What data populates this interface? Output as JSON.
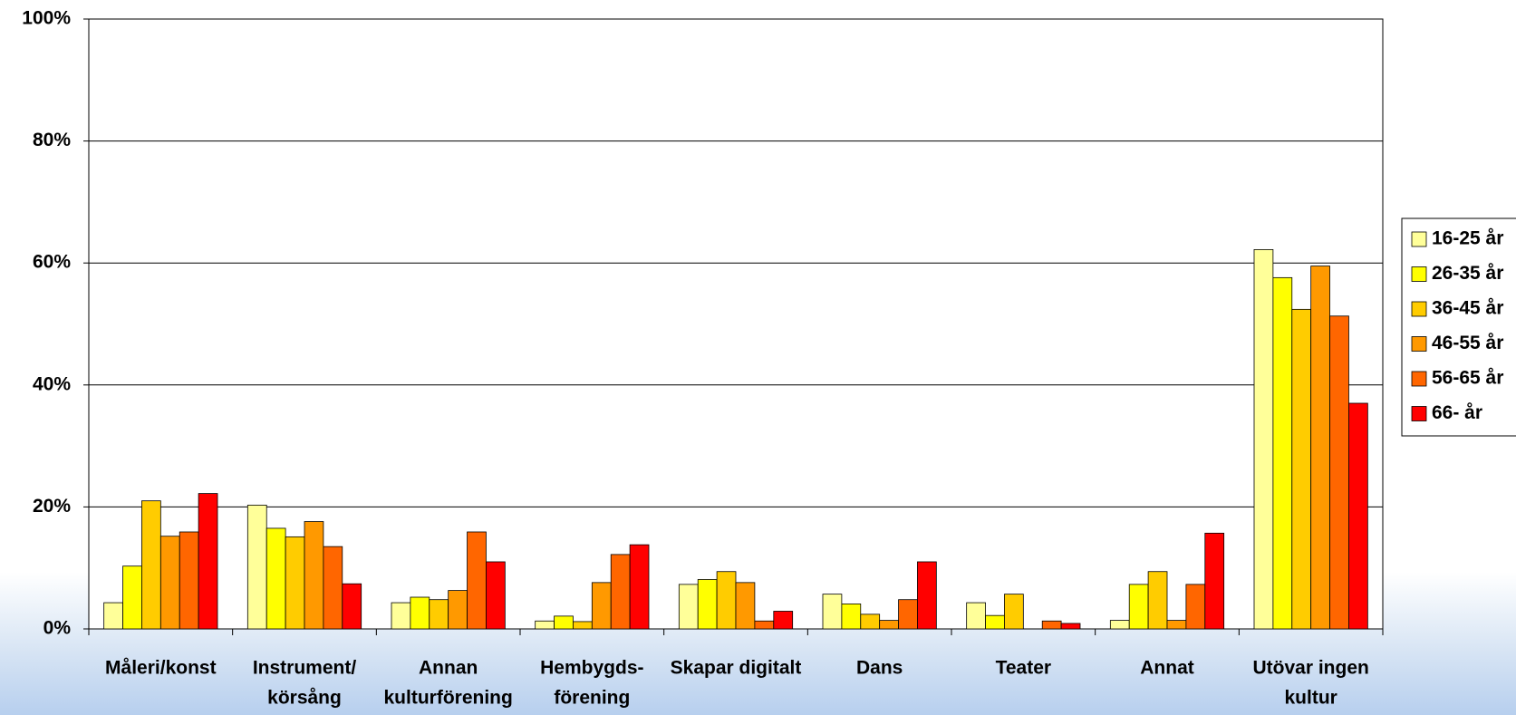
{
  "chart_data": {
    "type": "bar",
    "categories": [
      [
        "Måleri/konst"
      ],
      [
        "Instrument/",
        "körsång"
      ],
      [
        "Annan",
        "kulturförening"
      ],
      [
        "Hembygds-",
        "förening"
      ],
      [
        "Skapar digitalt"
      ],
      [
        "Dans"
      ],
      [
        "Teater"
      ],
      [
        "Annat"
      ],
      [
        "Utövar ingen",
        "kultur"
      ]
    ],
    "series": [
      {
        "name": "16-25 år",
        "color": "#FFFF99",
        "values": [
          4.3,
          20.3,
          4.3,
          1.3,
          7.3,
          5.7,
          4.3,
          1.4,
          62.2
        ]
      },
      {
        "name": "26-35 år",
        "color": "#FFFF00",
        "values": [
          10.3,
          16.5,
          5.2,
          2.1,
          8.1,
          4.1,
          2.2,
          7.3,
          57.6
        ]
      },
      {
        "name": "36-45 år",
        "color": "#FFCC00",
        "values": [
          21.0,
          15.1,
          4.8,
          1.2,
          9.4,
          2.4,
          5.7,
          9.4,
          52.4
        ]
      },
      {
        "name": "46-55 år",
        "color": "#FF9900",
        "values": [
          15.2,
          17.6,
          6.3,
          7.6,
          7.6,
          1.4,
          0,
          1.4,
          59.5
        ]
      },
      {
        "name": "56-65 år",
        "color": "#FF6600",
        "values": [
          15.9,
          13.5,
          15.9,
          12.2,
          1.3,
          4.8,
          1.3,
          7.3,
          51.3
        ]
      },
      {
        "name": "66- år",
        "color": "#FF0000",
        "values": [
          22.2,
          7.4,
          11.0,
          13.8,
          2.9,
          11.0,
          0.9,
          15.7,
          37.0
        ]
      }
    ],
    "ylim": [
      0,
      100
    ],
    "yticks": [
      {
        "value": 0,
        "label": "0%"
      },
      {
        "value": 20,
        "label": "20%"
      },
      {
        "value": 40,
        "label": "40%"
      },
      {
        "value": 60,
        "label": "60%"
      },
      {
        "value": 80,
        "label": "80%"
      },
      {
        "value": 100,
        "label": "100%"
      }
    ],
    "grid": true,
    "legend": "right"
  }
}
